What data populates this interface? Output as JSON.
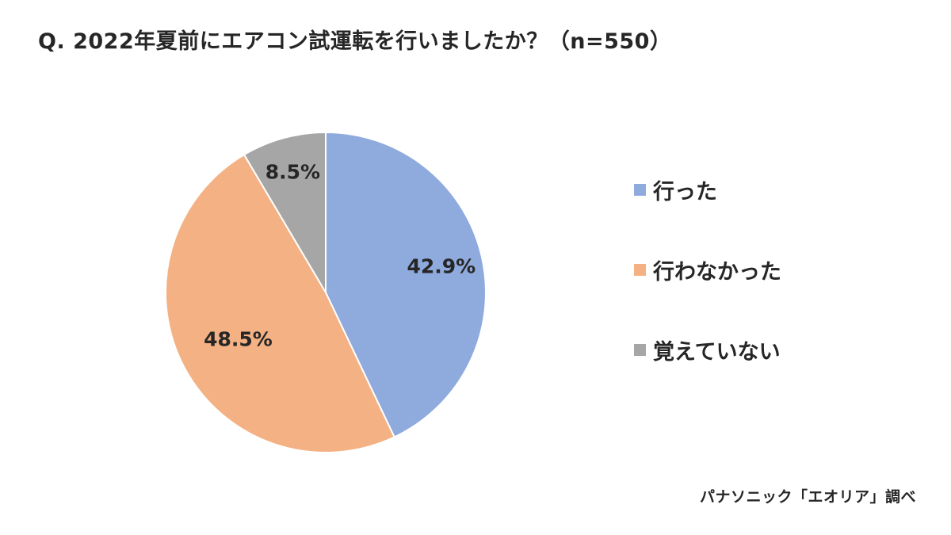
{
  "chart_data": {
    "type": "pie",
    "title": "Q. 2022年夏前にエアコン試運転を行いましたか？（n=550）",
    "categories": [
      "行った",
      "行わなかった",
      "覚えていない"
    ],
    "values": [
      42.9,
      48.5,
      8.5
    ],
    "value_labels": [
      "42.9%",
      "48.5%",
      "8.5%"
    ],
    "colors": [
      "#8faadc",
      "#f4b183",
      "#a6a6a6"
    ],
    "start": "12 o'clock",
    "direction": "clockwise",
    "legend": "right"
  },
  "source": "パナソニック「エオリア」調べ"
}
